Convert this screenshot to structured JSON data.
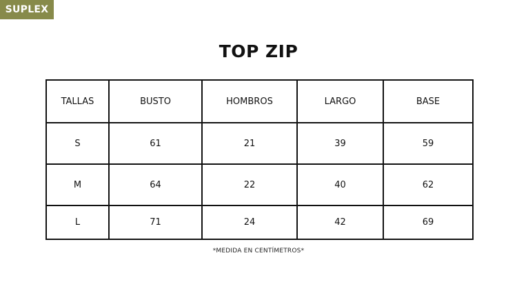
{
  "badge": "SUPLEX",
  "colors": {
    "badge_bg": "#878a4a"
  },
  "title": "TOP ZIP",
  "table": {
    "headers": [
      "TALLAS",
      "BUSTO",
      "HOMBROS",
      "LARGO",
      "BASE"
    ],
    "rows": [
      [
        "S",
        "61",
        "21",
        "39",
        "59"
      ],
      [
        "M",
        "64",
        "22",
        "40",
        "62"
      ],
      [
        "L",
        "71",
        "24",
        "42",
        "69"
      ]
    ]
  },
  "note": "*MEDIDA EN CENTÍMETROS*"
}
